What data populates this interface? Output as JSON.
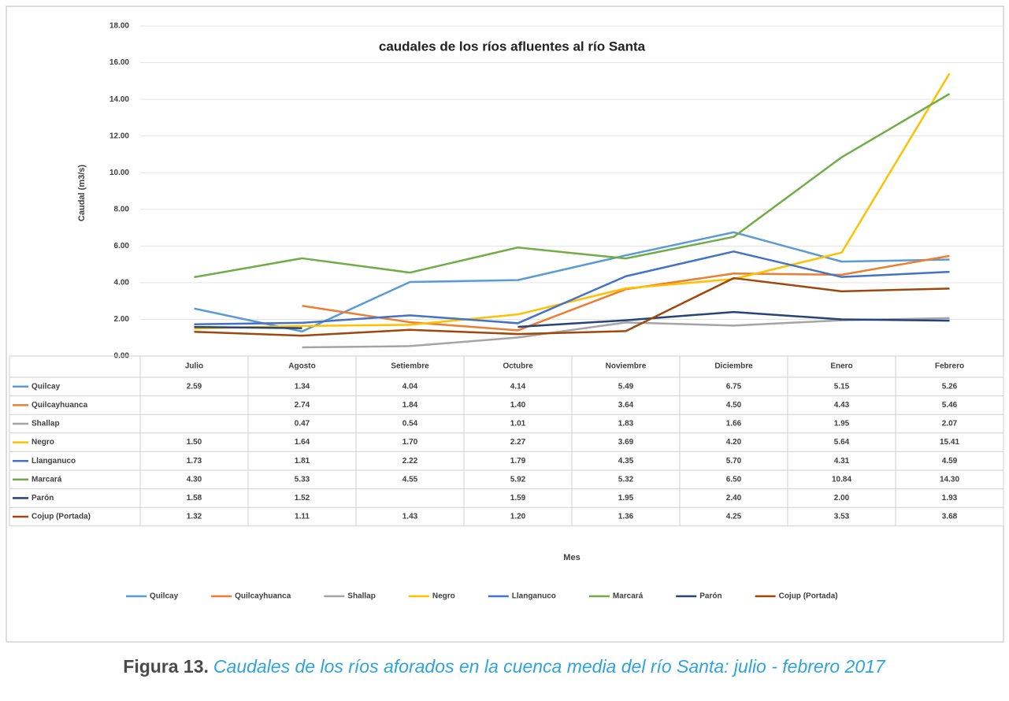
{
  "chart_data": {
    "type": "line",
    "title": "caudales de los ríos afluentes al río Santa",
    "ylabel": "Caudal (m3/s)",
    "xlabel": "Mes",
    "categories": [
      "Julio",
      "Agosto",
      "Setiembre",
      "Octubre",
      "Noviembre",
      "Diciembre",
      "Enero",
      "Febrero"
    ],
    "ylim": [
      0,
      18
    ],
    "yticks": [
      {
        "value": 0,
        "label": "0.00"
      },
      {
        "value": 2,
        "label": "2.00"
      },
      {
        "value": 4,
        "label": "4.00"
      },
      {
        "value": 6,
        "label": "6.00"
      },
      {
        "value": 8,
        "label": "8.00"
      },
      {
        "value": 10,
        "label": "10.00"
      },
      {
        "value": 12,
        "label": "12.00"
      },
      {
        "value": 14,
        "label": "14.00"
      },
      {
        "value": 16,
        "label": "16.00"
      },
      {
        "value": 18,
        "label": "18.00"
      }
    ],
    "grid": true,
    "legend": "bottom",
    "series": [
      {
        "name": "Quilcay",
        "color": "#5b9bd5",
        "values": [
          2.59,
          1.34,
          4.04,
          4.14,
          5.49,
          6.75,
          5.15,
          5.26
        ],
        "value_labels": [
          "2.59",
          "1.34",
          "4.04",
          "4.14",
          "5.49",
          "6.75",
          "5.15",
          "5.26"
        ]
      },
      {
        "name": "Quilcayhuanca",
        "color": "#ed7d31",
        "values": [
          null,
          2.74,
          1.84,
          1.4,
          3.64,
          4.5,
          4.43,
          5.46
        ],
        "value_labels": [
          null,
          "2.74",
          "1.84",
          "1.40",
          "3.64",
          "4.50",
          "4.43",
          "5.46"
        ]
      },
      {
        "name": "Shallap",
        "color": "#a5a5a5",
        "values": [
          null,
          0.47,
          0.54,
          1.01,
          1.83,
          1.66,
          1.95,
          2.07
        ],
        "value_labels": [
          null,
          "0.47",
          "0.54",
          "1.01",
          "1.83",
          "1.66",
          "1.95",
          "2.07"
        ]
      },
      {
        "name": "Negro",
        "color": "#ffc000",
        "values": [
          1.5,
          1.64,
          1.7,
          2.27,
          3.69,
          4.2,
          5.64,
          15.41
        ],
        "value_labels": [
          "1.50",
          "1.64",
          "1.70",
          "2.27",
          "3.69",
          "4.20",
          "5.64",
          "15.41"
        ]
      },
      {
        "name": "Llanganuco",
        "color": "#4472c4",
        "values": [
          1.73,
          1.81,
          2.22,
          1.79,
          4.35,
          5.7,
          4.31,
          4.59
        ],
        "value_labels": [
          "1.73",
          "1.81",
          "2.22",
          "1.79",
          "4.35",
          "5.70",
          "4.31",
          "4.59"
        ]
      },
      {
        "name": "Marcará",
        "color": "#70ad47",
        "values": [
          4.3,
          5.33,
          4.55,
          5.92,
          5.32,
          6.5,
          10.84,
          14.3
        ],
        "value_labels": [
          "4.30",
          "5.33",
          "4.55",
          "5.92",
          "5.32",
          "6.50",
          "10.84",
          "14.30"
        ]
      },
      {
        "name": "Parón",
        "color": "#264478",
        "values": [
          1.58,
          1.52,
          null,
          1.59,
          1.95,
          2.4,
          2.0,
          1.93
        ],
        "value_labels": [
          "1.58",
          "1.52",
          null,
          "1.59",
          "1.95",
          "2.40",
          "2.00",
          "1.93"
        ]
      },
      {
        "name": "Cojup (Portada)",
        "color": "#9e480e",
        "values": [
          1.32,
          1.11,
          1.43,
          1.2,
          1.36,
          4.25,
          3.53,
          3.68
        ],
        "value_labels": [
          "1.32",
          "1.11",
          "1.43",
          "1.20",
          "1.36",
          "4.25",
          "3.53",
          "3.68"
        ]
      }
    ]
  },
  "caption": {
    "label": "Figura 13.",
    "text": "Caudales de los ríos aforados en la cuenca media del río Santa: julio - febrero 2017"
  }
}
